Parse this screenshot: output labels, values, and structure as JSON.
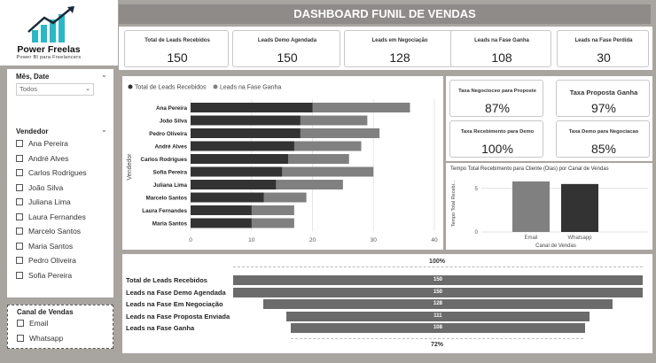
{
  "header": {
    "title": "DASHBOARD FUNIL DE VENDAS"
  },
  "logo": {
    "name": "Power Freelas",
    "tagline": "Power BI para Freelancers"
  },
  "slicer_date": {
    "title": "Mês, Date",
    "value": "Todos"
  },
  "slicer_vendor": {
    "title": "Vendedor",
    "items": [
      "Ana Pereira",
      "André Alves",
      "Carlos Rodrigues",
      "João Silva",
      "Juliana Lima",
      "Laura Fernandes",
      "Marcelo Santos",
      "Maria Santos",
      "Pedro Oliveira",
      "Sofia Pereira"
    ]
  },
  "slicer_channel": {
    "title": "Canal de Vendas",
    "items": [
      "Email",
      "Whatsapp"
    ]
  },
  "kpis": [
    {
      "title": "Total de Leads Recebidos",
      "value": "150"
    },
    {
      "title": "Leads Demo Agendada",
      "value": "150"
    },
    {
      "title": "Leads em Negociação",
      "value": "128"
    },
    {
      "title": "Leads na Fase Ganha",
      "value": "108"
    },
    {
      "title": "Leads na Fase Perdida",
      "value": "30"
    }
  ],
  "rates": [
    {
      "title": "Taxa Negocioceo para Proposte",
      "value": "87%"
    },
    {
      "title": "Taxa Proposta Ganha",
      "value": "97%"
    },
    {
      "title": "Taxa Recebimento para Demo",
      "value": "100%"
    },
    {
      "title": "Taxa Demo para Negociacao",
      "value": "85%"
    }
  ],
  "colors": {
    "dark": "#333333",
    "mid": "#808080",
    "funnel": "#6b6b6b",
    "header": "#8f8b88"
  },
  "chart_data": [
    {
      "type": "bar",
      "orientation": "horizontal",
      "categories": [
        "Ana Pereira",
        "João Silva",
        "Pedro Oliveira",
        "André Alves",
        "Carlos Rodrigues",
        "Sofia Pereira",
        "Juliana Lima",
        "Marcelo Santos",
        "Laura Fernandes",
        "Maria Santos"
      ],
      "series": [
        {
          "name": "Total de Leads Recebidos",
          "values": [
            20,
            18,
            18,
            17,
            16,
            15,
            14,
            12,
            10,
            10
          ]
        },
        {
          "name": "Leads na Fase Ganha",
          "values": [
            36,
            29,
            31,
            28,
            26,
            30,
            25,
            19,
            17,
            17
          ]
        }
      ],
      "ylabel": "Vendedor",
      "xticks": [
        "0",
        "10",
        "20",
        "30",
        "40"
      ],
      "xlim": [
        0,
        40
      ],
      "legend": "top-left"
    },
    {
      "type": "bar",
      "title": "Tempo Total Recebimento para Cliente (Dias) por Canal de Vendas",
      "categories": [
        "Email",
        "Whatsapp"
      ],
      "values": [
        5.8,
        5.5
      ],
      "xlabel": "Canal de Vendas",
      "ylabel": "Tempo Total Recebi...",
      "yticks": [
        "0",
        "5"
      ],
      "ylim": [
        0,
        6.5
      ]
    },
    {
      "type": "funnel",
      "categories": [
        "Total de Leads Recebidos",
        "Leads na Fase Demo Agendada",
        "Leads na Fase Em Negociação",
        "Leads na Fase Proposta Enviada",
        "Leads na Fase Ganha"
      ],
      "values": [
        150,
        150,
        128,
        111,
        108
      ],
      "labels": [
        "150",
        "150",
        "128",
        "111",
        "108"
      ],
      "top_label": "100%",
      "bottom_label": "72%"
    }
  ]
}
